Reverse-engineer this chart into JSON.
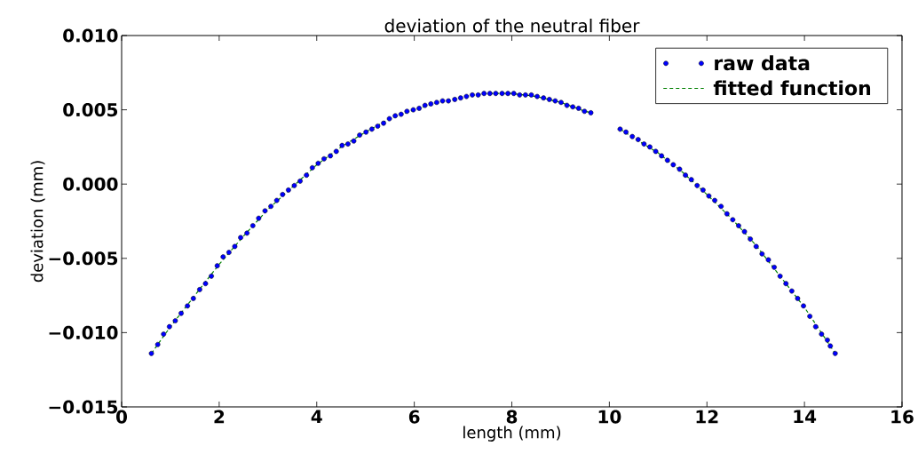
{
  "chart_data": {
    "type": "scatter",
    "title": "deviation of the neutral fiber",
    "xlabel": "length (mm)",
    "ylabel": "deviation (mm)",
    "xlim": [
      0,
      16
    ],
    "xticks": [
      0,
      2,
      4,
      6,
      8,
      10,
      12,
      14,
      16
    ],
    "ylim": [
      -0.015,
      0.01
    ],
    "yticks": [
      {
        "value": -0.015,
        "label": "−0.015"
      },
      {
        "value": -0.01,
        "label": "−0.010"
      },
      {
        "value": -0.005,
        "label": "−0.005"
      },
      {
        "value": 0.0,
        "label": "0.000"
      },
      {
        "value": 0.005,
        "label": "0.005"
      },
      {
        "value": 0.01,
        "label": "0.010"
      }
    ],
    "legend": "top right",
    "series": [
      {
        "name": "raw data",
        "marker": "circle",
        "color": "#0000ff",
        "x": [
          0.61,
          0.74,
          0.86,
          0.98,
          1.1,
          1.22,
          1.35,
          1.47,
          1.6,
          1.72,
          1.84,
          1.96,
          2.08,
          2.2,
          2.32,
          2.44,
          2.57,
          2.69,
          2.81,
          2.94,
          3.06,
          3.18,
          3.3,
          3.42,
          3.54,
          3.66,
          3.79,
          3.91,
          4.03,
          4.15,
          4.28,
          4.4,
          4.52,
          4.64,
          4.76,
          4.88,
          5.01,
          5.13,
          5.25,
          5.37,
          5.49,
          5.61,
          5.73,
          5.85,
          5.98,
          6.1,
          6.22,
          6.34,
          6.46,
          6.58,
          6.7,
          6.83,
          6.95,
          7.07,
          7.19,
          7.31,
          7.43,
          7.55,
          7.67,
          7.8,
          7.92,
          8.04,
          8.16,
          8.28,
          8.4,
          8.52,
          8.65,
          8.77,
          8.89,
          9.01,
          9.13,
          9.25,
          9.37,
          9.49,
          9.62,
          9.74,
          9.86,
          9.98,
          10.1,
          10.22,
          10.34,
          10.47,
          10.59,
          10.71,
          10.83,
          10.95,
          11.07,
          11.19,
          11.31,
          11.44,
          11.56,
          11.68,
          11.8,
          11.92,
          12.04,
          12.16,
          12.29,
          12.41,
          12.53,
          12.65,
          12.77,
          12.89,
          13.01,
          13.13,
          13.26,
          13.38,
          13.5,
          13.62,
          13.74,
          13.86,
          13.98,
          14.11,
          14.23,
          14.35,
          14.47,
          14.53,
          14.63
        ],
        "values": [
          -0.0114,
          -0.0108,
          -0.0101,
          -0.0096,
          -0.0092,
          -0.0087,
          -0.0082,
          -0.0077,
          -0.0071,
          -0.0067,
          -0.0062,
          -0.0055,
          -0.0049,
          -0.0046,
          -0.0042,
          -0.0036,
          -0.0033,
          -0.0028,
          -0.0023,
          -0.0018,
          -0.0015,
          -0.0011,
          -0.0007,
          -0.0004,
          -0.0001,
          0.0002,
          0.0006,
          0.0011,
          0.0014,
          0.0017,
          0.0019,
          0.0022,
          0.0026,
          0.0027,
          0.0029,
          0.0033,
          0.0035,
          0.0037,
          0.0039,
          0.0041,
          0.0044,
          0.0046,
          0.0047,
          0.0049,
          0.005,
          0.0051,
          0.0053,
          0.0054,
          0.0055,
          0.0056,
          0.0056,
          0.0057,
          0.0058,
          0.0059,
          0.006,
          0.006,
          0.0061,
          0.0061,
          0.0061,
          0.0061,
          0.0061,
          0.0061,
          0.006,
          0.006,
          0.006,
          0.0059,
          0.0058,
          0.0057,
          0.0056,
          0.0055,
          0.0053,
          0.0052,
          0.0051,
          0.0049,
          0.0048,
          null,
          null,
          null,
          null,
          0.0037,
          0.0035,
          0.0032,
          0.003,
          0.0027,
          0.0025,
          0.0022,
          0.0019,
          0.0016,
          0.0013,
          0.001,
          0.0006,
          0.0003,
          -0.0001,
          -0.0004,
          -0.0008,
          -0.0011,
          -0.0015,
          -0.002,
          -0.0024,
          -0.0028,
          -0.0032,
          -0.0037,
          -0.0042,
          -0.0047,
          -0.0051,
          -0.0056,
          -0.0062,
          -0.0067,
          -0.0072,
          -0.0077,
          -0.0082,
          -0.0089,
          -0.0096,
          -0.0101,
          -0.0105,
          -0.0109,
          -0.0114
        ]
      },
      {
        "name": "fitted function",
        "type": "line",
        "color": "#008000",
        "line_style": "dashed",
        "x": [
          0.61,
          1.0,
          1.5,
          2.0,
          2.5,
          3.0,
          3.5,
          4.0,
          4.5,
          5.0,
          5.5,
          6.0,
          6.5,
          7.0,
          7.5,
          8.0,
          8.5,
          9.0,
          9.5,
          9.62,
          9.74,
          10.1,
          10.22,
          10.5,
          11.0,
          11.5,
          12.0,
          12.5,
          13.0,
          13.5,
          14.0,
          14.63
        ],
        "values": [
          -0.0114,
          -0.0096,
          -0.0075,
          -0.0054,
          -0.0035,
          -0.0017,
          -0.0002,
          0.0013,
          0.0025,
          0.0035,
          0.0044,
          0.005,
          0.0055,
          0.0059,
          0.0061,
          0.0061,
          0.0059,
          0.0055,
          0.0049,
          0.0048,
          null,
          null,
          0.0037,
          0.0031,
          0.0021,
          0.0008,
          -0.0007,
          -0.0023,
          -0.0041,
          -0.0062,
          -0.0083,
          -0.0114
        ]
      }
    ]
  }
}
